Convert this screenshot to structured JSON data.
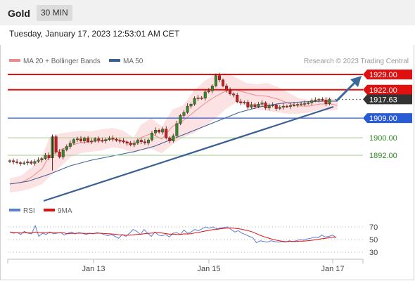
{
  "header": {
    "title": "Gold",
    "timeframe": "30 MIN"
  },
  "timestamp": "Tuesday, January 17, 2023 12:53:01 AM CET",
  "legend": {
    "ma20": "MA 20 + Bollinger Bands",
    "ma50": "MA 50",
    "source": "Research © 2023 Trading Central"
  },
  "rsi_legend": {
    "rsi": "RSI",
    "ma": "9MA"
  },
  "colors": {
    "resistance": "#e01010",
    "support": "#2a5bd7",
    "target": "#3a6a9a",
    "green": "#2e8b22",
    "ma20": "#f08a8a",
    "ma50": "#3a5f95",
    "rsi": "#5b7fd6",
    "rsi_ma": "#e01010"
  },
  "chart_data": {
    "type": "candlestick",
    "x_labels": [
      "Jan 13",
      "Jan 15",
      "Jan 17"
    ],
    "y_range": [
      1885,
      1932
    ],
    "levels": [
      {
        "value": "1929.00",
        "kind": "resistance"
      },
      {
        "value": "1922.00",
        "kind": "resistance"
      },
      {
        "value": "1917.63",
        "kind": "last"
      },
      {
        "value": "1909.00",
        "kind": "support"
      },
      {
        "value": "1900.00",
        "kind": "pivot"
      },
      {
        "value": "1892.00",
        "kind": "pivot"
      }
    ],
    "closes": [
      1889.5,
      1889.0,
      1888.6,
      1888.2,
      1888.5,
      1889.0,
      1888.3,
      1889.2,
      1889.8,
      1890.5,
      1892.0,
      1890.8,
      1900.5,
      1893.5,
      1891.2,
      1894.5,
      1896.0,
      1897.5,
      1899.2,
      1899.5,
      1898.5,
      1899.8,
      1898.2,
      1898.5,
      1899.6,
      1898.8,
      1898.5,
      1899.2,
      1899.8,
      1899.4,
      1898.8,
      1898.5,
      1898.1,
      1897.5,
      1896.8,
      1897.5,
      1898.9,
      1898.2,
      1897.6,
      1899.0,
      1902.2,
      1903.5,
      1902.6,
      1904.0,
      1900.0,
      1898.5,
      1900.9,
      1906.5,
      1910.2,
      1911.6,
      1914.5,
      1915.4,
      1918.0,
      1918.3,
      1918.1,
      1921.0,
      1921.5,
      1923.8,
      1928.5,
      1926.5,
      1923.8,
      1921.8,
      1920.1,
      1919.6,
      1916.5,
      1916.0,
      1916.3,
      1914.0,
      1915.2,
      1914.3,
      1915.4,
      1916.0,
      1913.6,
      1914.7,
      1915.0,
      1913.4,
      1914.0,
      1914.5,
      1914.3,
      1914.8,
      1915.0,
      1915.3,
      1915.5,
      1915.7,
      1916.0,
      1917.0,
      1917.3,
      1917.6,
      1917.3,
      1915.6,
      1917.63
    ],
    "rsi": {
      "y_ticks": [
        "70",
        "50",
        "30"
      ],
      "range": [
        20,
        80
      ],
      "values": [
        62,
        60,
        61,
        58,
        63,
        60,
        59,
        72,
        55,
        60,
        58,
        62,
        59,
        60,
        61,
        57,
        60,
        62,
        59,
        61,
        60,
        58,
        60,
        59,
        61,
        60,
        58,
        56,
        58,
        55,
        52,
        58,
        55,
        60,
        66,
        63,
        58,
        66,
        60,
        55,
        62,
        57,
        56,
        58,
        54,
        60,
        61,
        58,
        65,
        60,
        62,
        66,
        64,
        67,
        70,
        68,
        70,
        67,
        68,
        69,
        70,
        66,
        62,
        64,
        60,
        58,
        55,
        53,
        45,
        48,
        47,
        46,
        48,
        47,
        46,
        47,
        46,
        48,
        47,
        48,
        50,
        49,
        51,
        52,
        54,
        53,
        57,
        54,
        55,
        57,
        53
      ]
    }
  }
}
